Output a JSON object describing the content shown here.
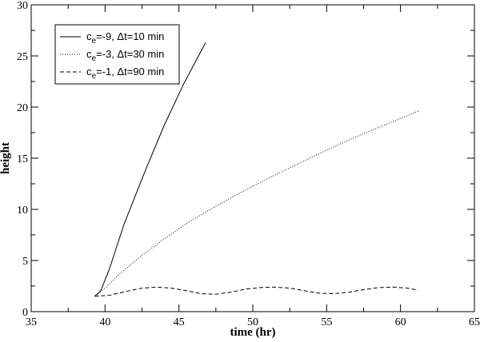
{
  "chart_data": {
    "type": "line",
    "title": "",
    "xlabel": "time (hr)",
    "ylabel": "height",
    "xlim": [
      35,
      65
    ],
    "ylim": [
      0,
      30
    ],
    "xticks": [
      35,
      40,
      45,
      50,
      55,
      60,
      65
    ],
    "yticks": [
      0,
      5,
      10,
      15,
      20,
      25,
      30
    ],
    "grid": false,
    "legend_position": "top-left",
    "series": [
      {
        "name": "c_e=-9, Δt=10 min",
        "legend": {
          "c": "c",
          "sub": "e",
          "rest": "=-9, Δt=10 min"
        },
        "style": "solid",
        "x": [
          39.3,
          39.7,
          40.3,
          41.3,
          42.7,
          44.0,
          45.3,
          46.8
        ],
        "y": [
          1.5,
          2.0,
          4.2,
          8.6,
          13.7,
          18.2,
          22.2,
          26.3
        ]
      },
      {
        "name": "c_e=-3, Δt=30 min",
        "legend": {
          "c": "c",
          "sub": "e",
          "rest": "=-3, Δt=30 min"
        },
        "style": "dotted",
        "x": [
          39.3,
          40.0,
          41.0,
          42.5,
          44.0,
          45.5,
          47.0,
          49.0,
          51.0,
          53.0,
          55.0,
          57.0,
          59.0,
          61.2
        ],
        "y": [
          1.5,
          2.3,
          3.7,
          5.5,
          7.1,
          8.6,
          9.9,
          11.5,
          13.0,
          14.4,
          15.8,
          17.1,
          18.3,
          19.6
        ]
      },
      {
        "name": "c_e=-1,  Δt=90 min",
        "legend": {
          "c": "c",
          "sub": "e",
          "rest": "=-1,  Δt=90 min"
        },
        "style": "dashed",
        "x": [
          39.3,
          40.3,
          41.5,
          42.5,
          43.5,
          44.5,
          45.5,
          46.5,
          47.5,
          48.5,
          49.5,
          50.5,
          51.5,
          52.5,
          53.5,
          54.5,
          55.5,
          56.5,
          57.5,
          58.5,
          59.5,
          60.5,
          61.2
        ],
        "y": [
          1.5,
          1.6,
          2.0,
          2.3,
          2.4,
          2.3,
          2.05,
          1.75,
          1.7,
          1.9,
          2.2,
          2.35,
          2.4,
          2.3,
          2.05,
          1.8,
          1.75,
          1.9,
          2.15,
          2.35,
          2.4,
          2.3,
          2.1
        ]
      }
    ]
  }
}
